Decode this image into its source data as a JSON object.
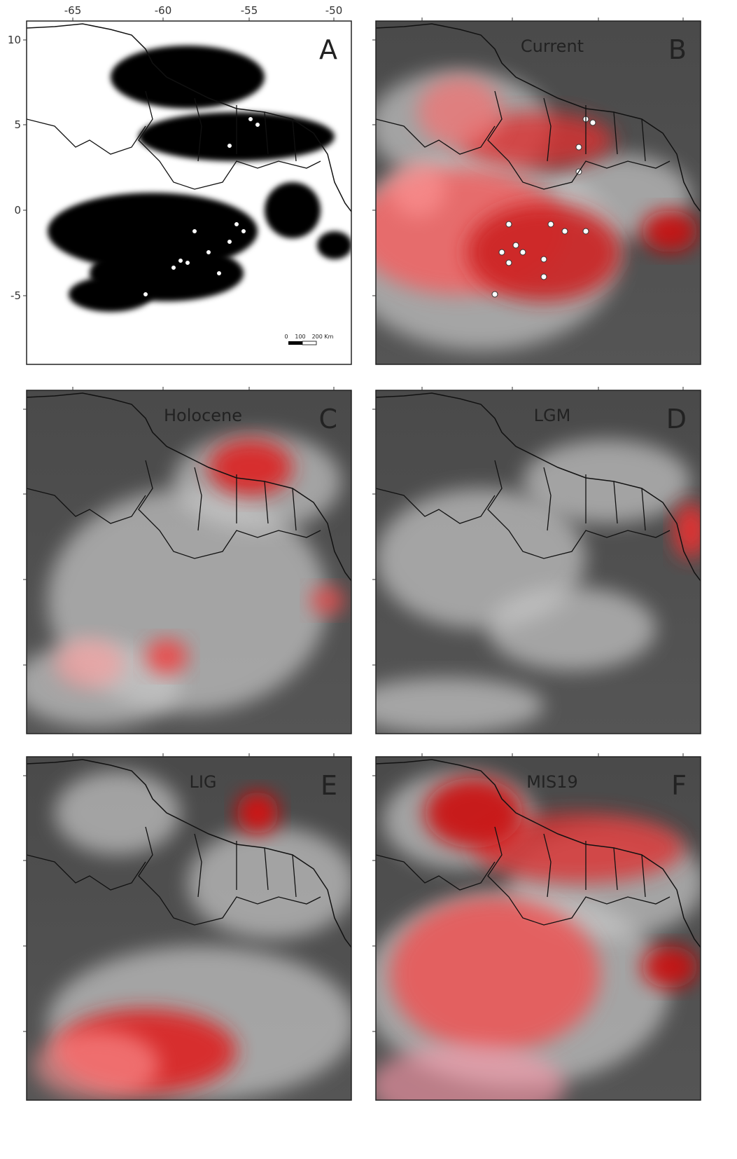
{
  "axes": {
    "xticks": [
      -65,
      -60,
      -55,
      -50
    ],
    "yticks": [
      10,
      5,
      0,
      -5
    ]
  },
  "panels": [
    {
      "letter": "A"
    },
    {
      "letter": "B",
      "title": "Current"
    },
    {
      "letter": "C",
      "title": "Holocene"
    },
    {
      "letter": "D",
      "title": "LGM"
    },
    {
      "letter": "E",
      "title": "LIG"
    },
    {
      "letter": "F",
      "title": "MIS19"
    }
  ],
  "scale_bar": {
    "labels": [
      "0",
      "100",
      "200 Km"
    ]
  }
}
